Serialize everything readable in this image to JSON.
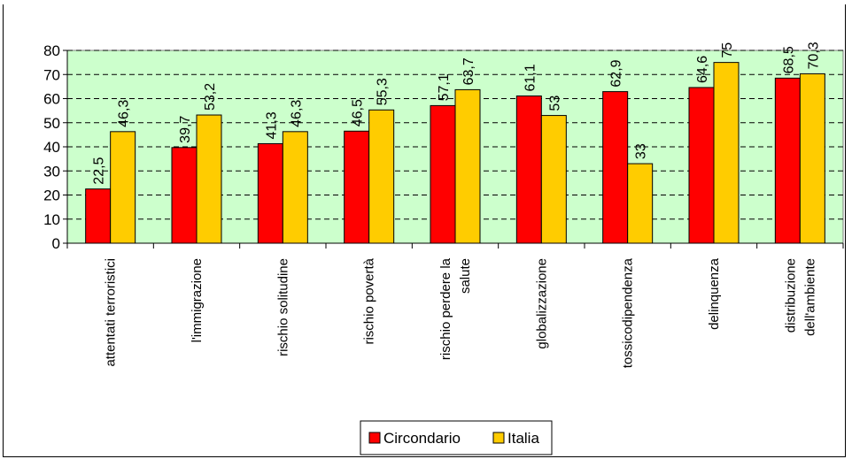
{
  "chart_data": {
    "type": "bar",
    "title": "",
    "categories": [
      [
        "attentati terroristici"
      ],
      [
        "l'immigrazione"
      ],
      [
        "rischio solitudine"
      ],
      [
        "rischio povertà"
      ],
      [
        "rischio perdere la",
        "salute"
      ],
      [
        "globalizzazione"
      ],
      [
        "tossicodipendenza"
      ],
      [
        "delinquenza"
      ],
      [
        "distribuzione",
        "dell'ambiente"
      ]
    ],
    "series": [
      {
        "name": "Circondario",
        "color": "#ff0000",
        "values": [
          22.5,
          39.7,
          41.3,
          46.5,
          57.1,
          61.1,
          62.9,
          64.6,
          68.5
        ],
        "labels": [
          "22,5",
          "39,7",
          "41,3",
          "46,5",
          "57,1",
          "61,1",
          "62,9",
          "64,6",
          "68,5"
        ]
      },
      {
        "name": "Italia",
        "color": "#ffcc00",
        "values": [
          46.3,
          53.2,
          46.3,
          55.3,
          63.7,
          53,
          33,
          75,
          70.3
        ],
        "labels": [
          "46,3",
          "53,2",
          "46,3",
          "55,3",
          "63,7",
          "53",
          "33",
          "75",
          "70,3"
        ]
      }
    ],
    "ylim": [
      0,
      80
    ],
    "yticks": [
      0,
      10,
      20,
      30,
      40,
      50,
      60,
      70,
      80
    ],
    "grid": true,
    "plot_background": "#ccffcc",
    "legend": "bottom-center"
  }
}
